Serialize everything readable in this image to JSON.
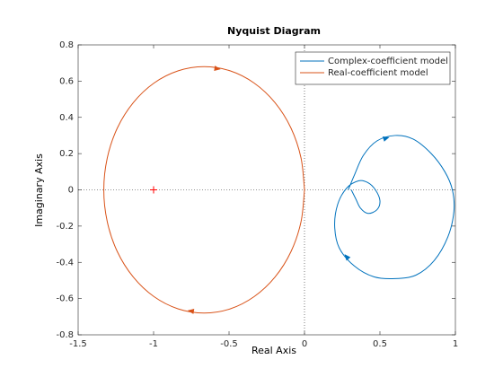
{
  "chart_data": {
    "type": "line",
    "title": "Nyquist Diagram",
    "x_label": "Real Axis",
    "y_label": "Imaginary Axis",
    "xlim": [
      -1.5,
      1
    ],
    "ylim": [
      -0.8,
      0.8
    ],
    "xticks": [
      -1.5,
      -1,
      -0.5,
      0,
      0.5,
      1
    ],
    "yticks": [
      -0.8,
      -0.6,
      -0.4,
      -0.2,
      0,
      0.2,
      0.4,
      0.6,
      0.8
    ],
    "grid": false,
    "legend_position": "upper-right",
    "critical_point": {
      "x": -1,
      "y": 0,
      "color": "#ff0000"
    },
    "series": [
      {
        "name": "Complex-coefficient model",
        "color": "#0072bd",
        "x": [
          0.29,
          0.33,
          0.39,
          0.48,
          0.6,
          0.72,
          0.84,
          0.93,
          0.98,
          0.99,
          0.95,
          0.86,
          0.74,
          0.6,
          0.46,
          0.33,
          0.23,
          0.2,
          0.22,
          0.28,
          0.36,
          0.42,
          0.47,
          0.5,
          0.48,
          0.42,
          0.37,
          0.34,
          0.31
        ],
        "y": [
          0.0,
          0.08,
          0.19,
          0.27,
          0.3,
          0.28,
          0.2,
          0.1,
          0.0,
          -0.12,
          -0.26,
          -0.39,
          -0.47,
          -0.49,
          -0.48,
          -0.42,
          -0.32,
          -0.2,
          -0.08,
          0.01,
          0.05,
          0.04,
          0.0,
          -0.06,
          -0.11,
          -0.13,
          -0.1,
          -0.05,
          0.0
        ]
      },
      {
        "name": "Real-coefficient model",
        "color": "#d95319",
        "x": [
          0,
          -0.023,
          -0.089,
          -0.195,
          -0.333,
          -0.493,
          -0.665,
          -0.837,
          -0.998,
          -1.135,
          -1.241,
          -1.307,
          -1.33,
          -1.307,
          -1.241,
          -1.135,
          -0.998,
          -0.837,
          -0.665,
          -0.493,
          -0.333,
          -0.195,
          -0.089,
          -0.023,
          0
        ],
        "y": [
          0,
          -0.176,
          -0.34,
          -0.481,
          -0.589,
          -0.657,
          -0.68,
          -0.657,
          -0.589,
          -0.481,
          -0.34,
          -0.176,
          0,
          0.176,
          0.34,
          0.481,
          0.589,
          0.657,
          0.68,
          0.657,
          0.589,
          0.481,
          0.34,
          0.176,
          0
        ]
      }
    ]
  }
}
